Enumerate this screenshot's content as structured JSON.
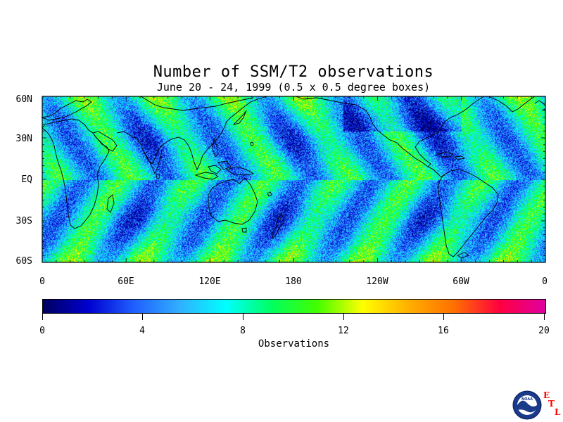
{
  "title": "Number of SSM/T2 observations",
  "subtitle": "June 20 - 24, 1999 (0.5 x 0.5 degree boxes)",
  "map": {
    "lat_labels": [
      "60N",
      "30N",
      "EQ",
      "30S",
      "60S"
    ],
    "lon_labels": [
      "0",
      "60E",
      "120E",
      "180",
      "120W",
      "60W",
      "0"
    ],
    "lat_range": [
      -60,
      60
    ],
    "lon_range": [
      0,
      360
    ]
  },
  "colorbar": {
    "title": "Observations",
    "tick_labels": [
      "0",
      "4",
      "8",
      "12",
      "16",
      "20"
    ],
    "range": [
      0,
      20
    ],
    "colors": [
      "#000060",
      "#0000d0",
      "#2060ff",
      "#30b0ff",
      "#00ffff",
      "#00ff60",
      "#40ff00",
      "#ffff00",
      "#ffb000",
      "#ff7000",
      "#ff0040",
      "#e000a0"
    ]
  },
  "logo": {
    "name": "NOAA",
    "letters": [
      "E",
      "T",
      "L"
    ]
  }
}
